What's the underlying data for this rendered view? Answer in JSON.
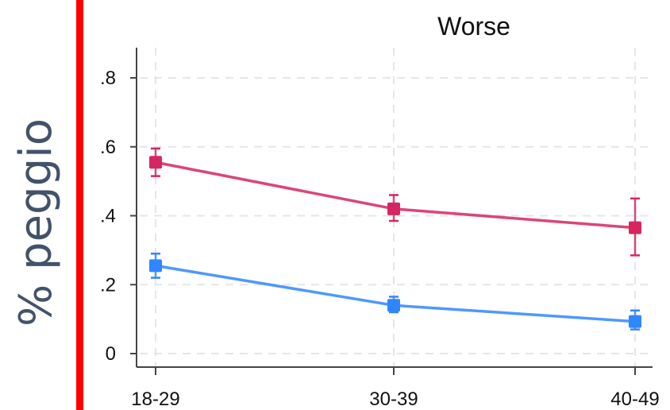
{
  "side_label": "% peggio",
  "colors": {
    "accent_bar": "#ff0000",
    "series_pink": "#d6265f",
    "series_blue": "#2f86ff",
    "axis": "#444444",
    "grid": "#e6e6e6",
    "side_label": "#42526b"
  },
  "chart_data": {
    "type": "line",
    "title": "Worse",
    "xlabel": "",
    "ylabel": "",
    "categories": [
      "18-29",
      "30-39",
      "40-49"
    ],
    "ylim": [
      0,
      0.85
    ],
    "y_ticks": [
      0,
      0.2,
      0.4,
      0.6,
      0.8
    ],
    "y_tick_labels": [
      "0",
      ".2",
      ".4",
      ".6",
      ".8"
    ],
    "grid": true,
    "series": [
      {
        "color": "#d6265f",
        "values": [
          0.555,
          0.42,
          0.365
        ],
        "ci_low": [
          0.515,
          0.385,
          0.285
        ],
        "ci_high": [
          0.595,
          0.46,
          0.45
        ]
      },
      {
        "color": "#2f86ff",
        "values": [
          0.255,
          0.14,
          0.093
        ],
        "ci_low": [
          0.22,
          0.12,
          0.07
        ],
        "ci_high": [
          0.29,
          0.165,
          0.125
        ]
      }
    ]
  }
}
